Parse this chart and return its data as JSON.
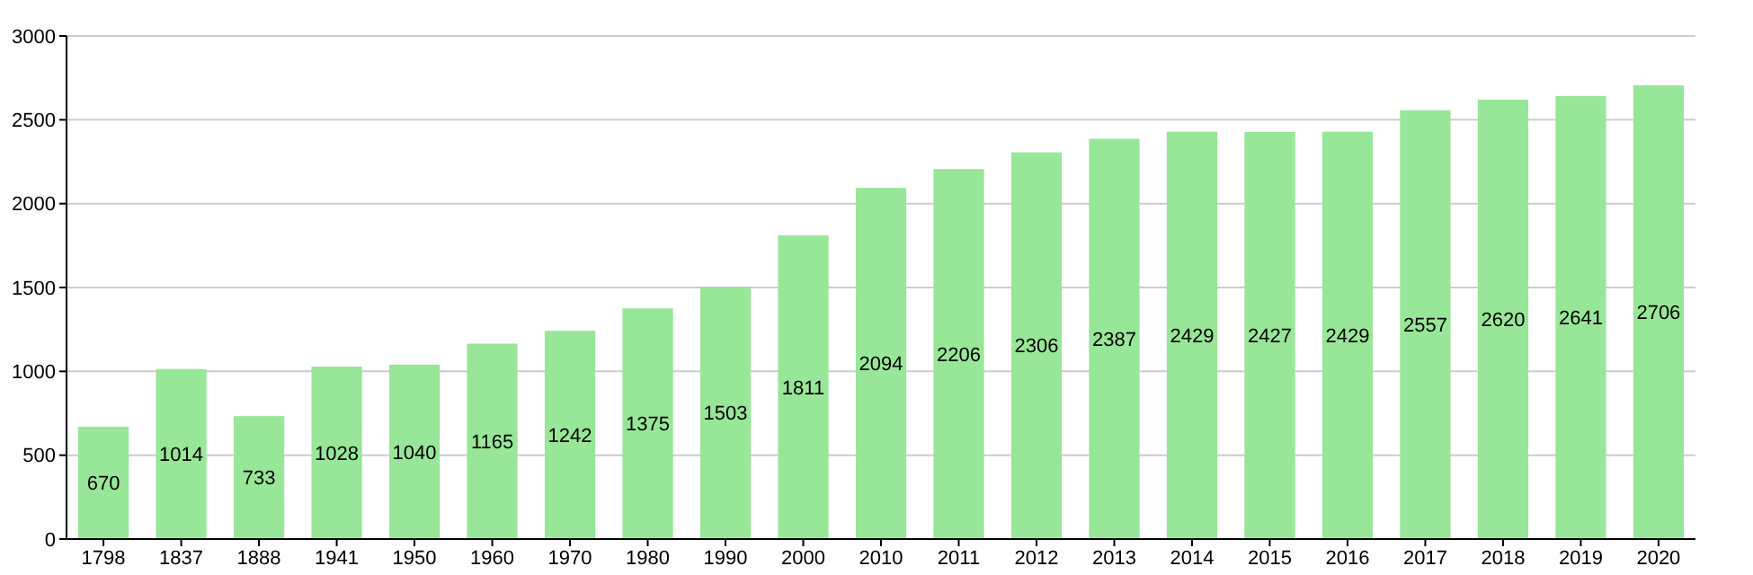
{
  "chart_data": {
    "type": "bar",
    "categories": [
      "1798",
      "1837",
      "1888",
      "1941",
      "1950",
      "1960",
      "1970",
      "1980",
      "1990",
      "2000",
      "2010",
      "2011",
      "2012",
      "2013",
      "2014",
      "2015",
      "2016",
      "2017",
      "2018",
      "2019",
      "2020"
    ],
    "values": [
      670,
      1014,
      733,
      1028,
      1040,
      1165,
      1242,
      1375,
      1503,
      1811,
      2094,
      2206,
      2306,
      2387,
      2429,
      2427,
      2429,
      2557,
      2620,
      2641,
      2706
    ],
    "color": "#98e698",
    "ylim": [
      0,
      3000
    ],
    "yticks": [
      0,
      500,
      1000,
      1500,
      2000,
      2500,
      3000
    ],
    "grid": "y",
    "data_labels": true
  }
}
